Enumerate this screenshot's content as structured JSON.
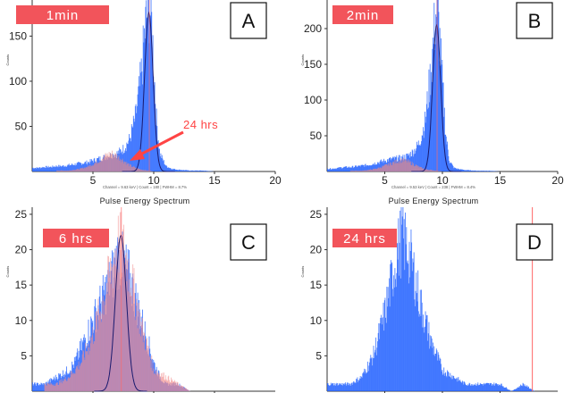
{
  "chart_data": [
    {
      "type": "histogram",
      "panel_letter": "A",
      "time_label": "1min",
      "xlabel": "Pulse Energy Spectrum",
      "ylabel": "Counts",
      "xlim": [
        0,
        20
      ],
      "ylim": [
        0,
        190
      ],
      "xticks": [
        "5",
        "10",
        "15",
        "20"
      ],
      "yticks": [
        50,
        100,
        150
      ],
      "footer": "Channel = 9.63 keV | Count = 180 | FWHM = 8.7%",
      "series": [
        {
          "color": "#1f5fff",
          "x": [
            0.5,
            1,
            1.5,
            2,
            2.5,
            3,
            3.5,
            4,
            4.5,
            5,
            5.5,
            6,
            6.5,
            7,
            7.5,
            8,
            8.5,
            9,
            9.3,
            9.6,
            9.8,
            10,
            10.2,
            10.5,
            11,
            11.5,
            12,
            13,
            14,
            15
          ],
          "values": [
            4,
            5,
            5,
            6,
            6,
            7,
            8,
            9,
            10,
            12,
            14,
            16,
            18,
            20,
            25,
            35,
            60,
            110,
            160,
            185,
            170,
            120,
            60,
            20,
            6,
            3,
            2,
            1,
            1,
            0
          ]
        },
        {
          "color": "#e58a8a",
          "x": [
            3,
            3.5,
            4,
            4.5,
            5,
            5.5,
            6,
            6.5,
            7,
            7.5,
            8,
            8.5,
            9,
            9.5,
            10
          ],
          "values": [
            1,
            2,
            3,
            5,
            8,
            12,
            17,
            20,
            17,
            12,
            7,
            4,
            2,
            1,
            0
          ]
        }
      ],
      "fit_peak": 9.6,
      "fit_height": 176,
      "annotation": {
        "text": "24 hrs",
        "color": "#ff4444"
      }
    },
    {
      "type": "histogram",
      "panel_letter": "B",
      "time_label": "2min",
      "xlabel": "Pulse Energy Spectrum",
      "ylabel": "Counts",
      "xlim": [
        0,
        20
      ],
      "ylim": [
        0,
        240
      ],
      "xticks": [
        "5",
        "10",
        "15",
        "20"
      ],
      "yticks": [
        50,
        100,
        150,
        200
      ],
      "footer": "Channel = 9.53 keV | Count = 238 | FWHM = 8.4%",
      "series": [
        {
          "color": "#1f5fff",
          "x": [
            0.5,
            1,
            1.5,
            2,
            2.5,
            3,
            3.5,
            4,
            4.5,
            5,
            5.5,
            6,
            6.5,
            7,
            7.5,
            8,
            8.5,
            9,
            9.3,
            9.5,
            9.7,
            10,
            10.3,
            10.6,
            11,
            11.5,
            12,
            13,
            14,
            15
          ],
          "values": [
            4,
            5,
            6,
            6,
            7,
            8,
            9,
            11,
            13,
            15,
            17,
            18,
            19,
            22,
            28,
            40,
            70,
            140,
            200,
            230,
            200,
            120,
            50,
            15,
            5,
            3,
            2,
            1,
            1,
            0
          ]
        },
        {
          "color": "#e58a8a",
          "x": [
            3,
            3.5,
            4,
            4.5,
            5,
            5.5,
            6,
            6.5,
            7,
            7.5,
            8,
            8.5,
            9,
            9.5,
            10
          ],
          "values": [
            1,
            2,
            3,
            5,
            8,
            11,
            14,
            16,
            14,
            10,
            6,
            3,
            2,
            1,
            0
          ]
        }
      ],
      "fit_peak": 9.5,
      "fit_height": 205
    },
    {
      "type": "histogram",
      "panel_letter": "C",
      "time_label": "6 hrs",
      "xlabel": "",
      "ylabel": "Counts",
      "xlim": [
        0,
        20
      ],
      "ylim": [
        0,
        26
      ],
      "xticks": [],
      "yticks": [
        5,
        10,
        15,
        20,
        25
      ],
      "footer": "",
      "series": [
        {
          "color": "#1f5fff",
          "x": [
            1,
            2,
            3,
            3.5,
            4,
            4.5,
            5,
            5.5,
            6,
            6.5,
            7,
            7.5,
            8,
            8.5,
            9,
            9.5,
            10,
            10.5,
            11,
            12,
            13
          ],
          "values": [
            1,
            2,
            3,
            4,
            6,
            8,
            10,
            12,
            14,
            16,
            19,
            18,
            16,
            13,
            10,
            7,
            4,
            2,
            1,
            1,
            0
          ]
        },
        {
          "color": "#f29090",
          "x": [
            2,
            3,
            4,
            4.5,
            5,
            5.5,
            6,
            6.5,
            7,
            7.5,
            8,
            8.5,
            9,
            9.5,
            10,
            11,
            12,
            13
          ],
          "values": [
            1,
            2,
            4,
            6,
            8,
            11,
            14,
            17,
            21,
            20,
            17,
            13,
            9,
            6,
            3,
            2,
            1,
            0
          ]
        }
      ],
      "fit_peak": 7.3,
      "fit_height": 22
    },
    {
      "type": "histogram",
      "panel_letter": "D",
      "time_label": "24 hrs",
      "xlabel": "",
      "ylabel": "Counts",
      "xlim": [
        0,
        20
      ],
      "ylim": [
        0,
        26
      ],
      "xticks": [],
      "yticks": [
        5,
        10,
        15,
        20,
        25
      ],
      "footer": "",
      "series": [
        {
          "color": "#1f5fff",
          "x": [
            1,
            2,
            3,
            4,
            4.5,
            5,
            5.5,
            6,
            6.5,
            7,
            7.5,
            8,
            8.5,
            9,
            9.5,
            10,
            11,
            12,
            13,
            14,
            15,
            16,
            17,
            18
          ],
          "values": [
            1,
            1,
            2,
            5,
            8,
            11,
            15,
            19,
            22,
            20,
            17,
            13,
            10,
            7,
            5,
            3,
            2,
            1,
            1,
            1,
            1,
            0,
            1,
            0
          ]
        }
      ],
      "marker_x": 17.8
    }
  ]
}
